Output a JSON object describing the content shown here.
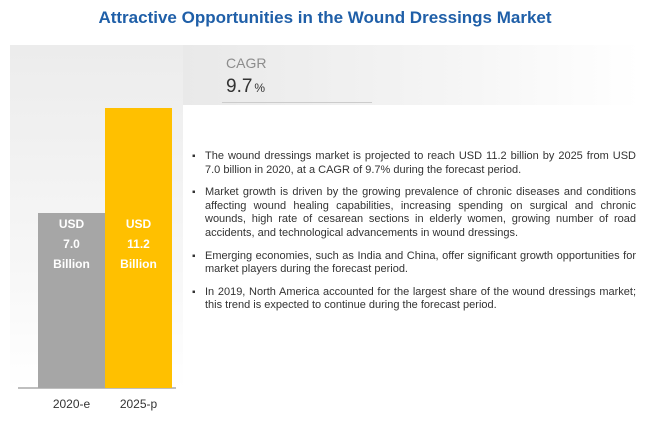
{
  "title": "Attractive Opportunities in the Wound Dressings Market",
  "cagr": {
    "label": "CAGR",
    "value": "9.7",
    "unit": "%"
  },
  "chart_data": {
    "type": "bar",
    "categories": [
      "2020-e",
      "2025-p"
    ],
    "values": [
      7.0,
      11.2
    ],
    "data_labels": [
      [
        "USD",
        "7.0",
        "Billion"
      ],
      [
        "USD",
        "11.2",
        "Billion"
      ]
    ],
    "colors": [
      "#a6a6a6",
      "#ffc000"
    ],
    "label_color": "#ffffff",
    "ylim": [
      0,
      12
    ],
    "grid": false,
    "legend": "none",
    "title": "",
    "xlabel": "",
    "ylabel": ""
  },
  "bullets": [
    "The wound dressings market is projected to reach USD 11.2 billion by 2025 from USD 7.0 billion in 2020, at a CAGR of 9.7% during the forecast period.",
    "Market growth is driven by the growing prevalence of chronic diseases and conditions affecting wound healing capabilities, increasing spending on surgical and chronic wounds, high rate of cesarean sections in elderly women, growing number of road accidents, and technological advancements in wound dressings.",
    "Emerging economies, such as India and China, offer significant growth opportunities for market players during the forecast period.",
    "In 2019, North America accounted for the largest share of the wound dressings market; this trend is expected to continue during the forecast period."
  ],
  "colors": {
    "title": "#1f5fa8"
  }
}
